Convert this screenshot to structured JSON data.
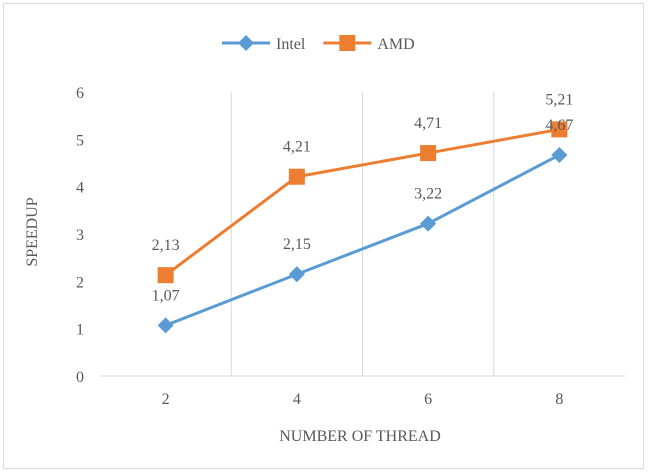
{
  "chart_data": {
    "type": "line",
    "title": "",
    "xlabel": "NUMBER OF THREAD",
    "ylabel": "SPEEDUP",
    "categories": [
      "2",
      "4",
      "6",
      "8"
    ],
    "ylim": [
      0,
      6
    ],
    "yticks": [
      "0",
      "1",
      "2",
      "3",
      "4",
      "5",
      "6"
    ],
    "grid": true,
    "legend": "top",
    "series": [
      {
        "name": "Intel",
        "values": [
          1.07,
          2.15,
          3.22,
          4.67
        ],
        "labels": [
          "1,07",
          "2,15",
          "3,22",
          "4,67"
        ],
        "color": "#5b9bd5",
        "marker": "diamond"
      },
      {
        "name": "AMD",
        "values": [
          2.13,
          4.21,
          4.71,
          5.21
        ],
        "labels": [
          "2,13",
          "4,21",
          "4,71",
          "5,21"
        ],
        "color": "#ed7d31",
        "marker": "square"
      }
    ]
  }
}
